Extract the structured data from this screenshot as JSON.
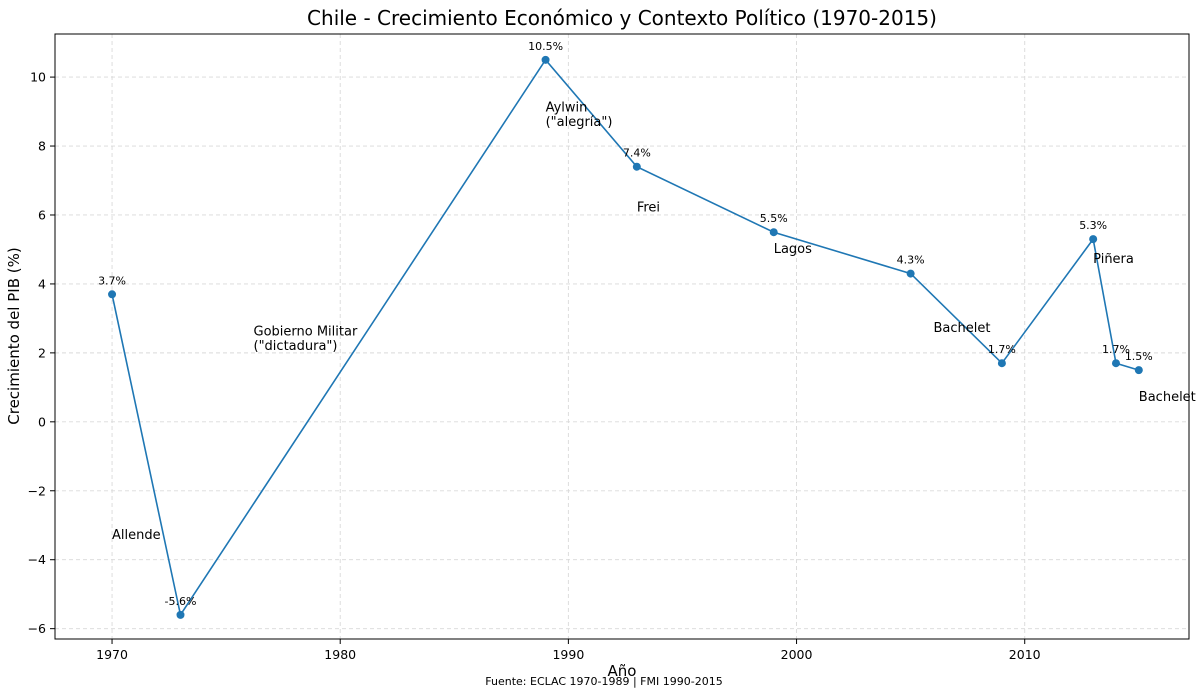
{
  "chart_data": {
    "type": "line",
    "title": "Chile - Crecimiento Económico y Contexto Político (1970-2015)",
    "xlabel": "Año",
    "ylabel": "Crecimiento del PIB (%)",
    "xlim": [
      1967.5,
      2017.2
    ],
    "ylim": [
      -6.3,
      11.25
    ],
    "xticks": [
      1970,
      1980,
      1990,
      2000,
      2010
    ],
    "yticks": [
      -6,
      -4,
      -2,
      0,
      2,
      4,
      6,
      8,
      10
    ],
    "ytick_labels": [
      "−6",
      "−4",
      "−2",
      "0",
      "2",
      "4",
      "6",
      "8",
      "10"
    ],
    "grid": true,
    "series_color": "#1f77b4",
    "series": [
      {
        "x": [
          1970,
          1973,
          1989,
          1993,
          1999,
          2005,
          2009,
          2013,
          2014,
          2015
        ],
        "y": [
          3.7,
          -5.6,
          10.5,
          7.4,
          5.5,
          4.3,
          1.7,
          5.3,
          1.7,
          1.5
        ]
      }
    ],
    "data_labels": [
      "3.7%",
      "-5.6%",
      "10.5%",
      "7.4%",
      "5.5%",
      "4.3%",
      "1.7%",
      "5.3%",
      "1.7%",
      "1.5%"
    ],
    "annotations": [
      {
        "x": 1970,
        "y": -3.4,
        "lines": [
          "Allende"
        ]
      },
      {
        "x": 1976.2,
        "y": 2.5,
        "lines": [
          "Gobierno Militar",
          "(\"dictadura\")"
        ]
      },
      {
        "x": 1989,
        "y": 9.0,
        "lines": [
          "Aylwin",
          "(\"alegría\")"
        ]
      },
      {
        "x": 1993,
        "y": 6.1,
        "lines": [
          "Frei"
        ]
      },
      {
        "x": 1999,
        "y": 4.9,
        "lines": [
          "Lagos"
        ]
      },
      {
        "x": 2006.0,
        "y": 2.6,
        "lines": [
          "Bachelet"
        ]
      },
      {
        "x": 2013,
        "y": 4.6,
        "lines": [
          "Piñera"
        ]
      },
      {
        "x": 2015,
        "y": 0.6,
        "lines": [
          "Bachelet"
        ]
      }
    ]
  },
  "source_note": "Fuente: ECLAC 1970-1989 | FMI 1990-2015"
}
